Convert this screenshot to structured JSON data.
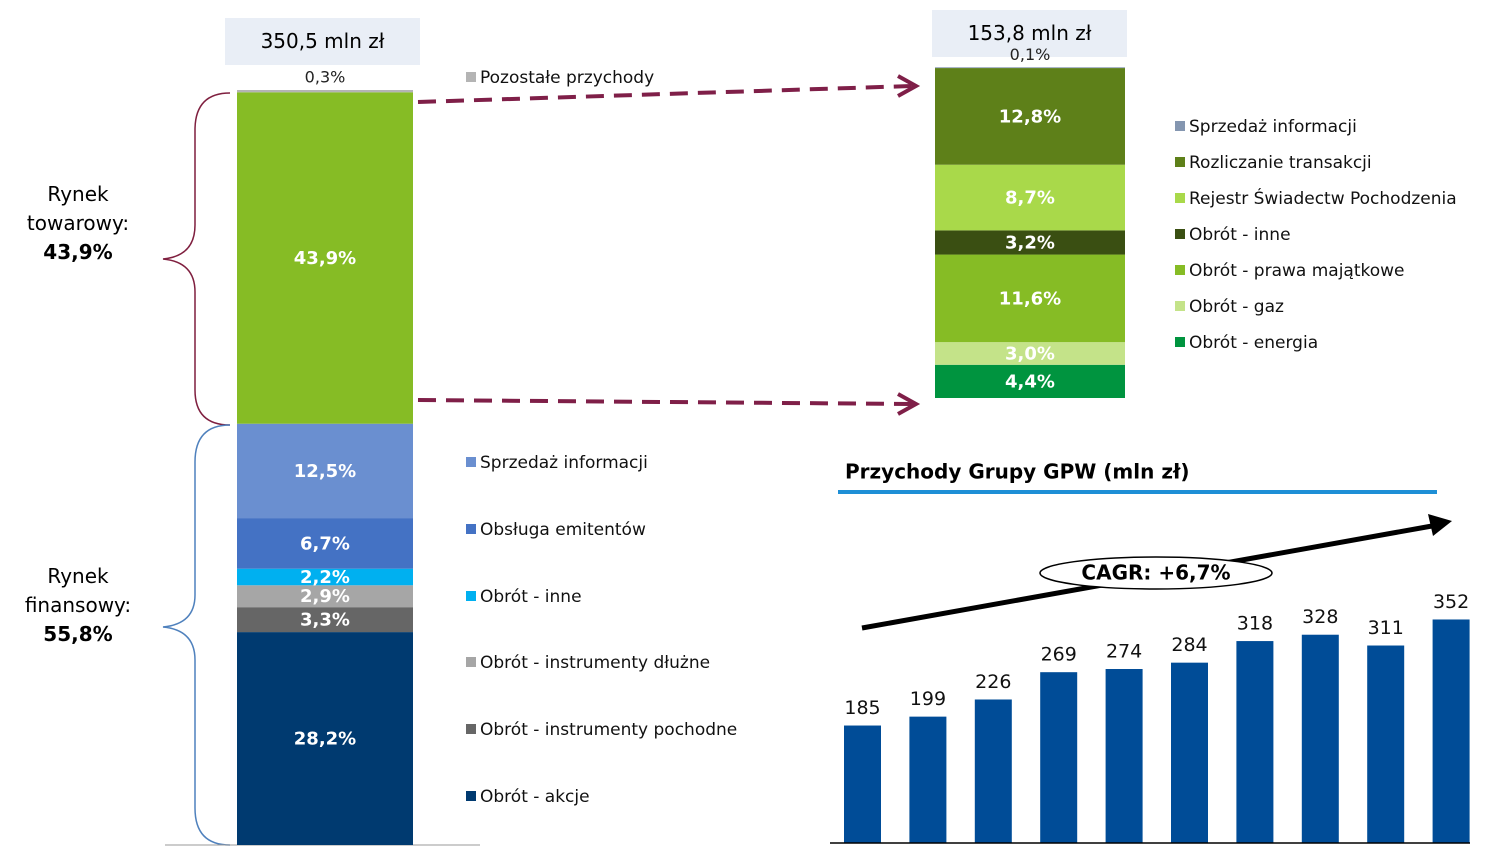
{
  "chart_data": [
    {
      "type": "stacked_bar",
      "total_label": "350,5 mln zł",
      "ylim": [
        0,
        100
      ],
      "series": [
        {
          "name": "Obrót - akcje",
          "color": "#003a70",
          "values": [
            28.2
          ],
          "value_labels": [
            "28,2%"
          ]
        },
        {
          "name": "Obrót - instrumenty pochodne",
          "color": "#666666",
          "values": [
            3.3
          ],
          "value_labels": [
            "3,3%"
          ]
        },
        {
          "name": "Obrót - instrumenty dłużne",
          "color": "#a6a6a6",
          "values": [
            2.9
          ],
          "value_labels": [
            "2,9%"
          ]
        },
        {
          "name": "Obrót - inne",
          "color": "#00b0f0",
          "values": [
            2.2
          ],
          "value_labels": [
            "2,2%"
          ]
        },
        {
          "name": "Obsługa emitentów",
          "color": "#4472c4",
          "values": [
            6.7
          ],
          "value_labels": [
            "6,7%"
          ]
        },
        {
          "name": "Sprzedaż informacji",
          "color": "#6a8fd0",
          "values": [
            12.5
          ],
          "value_labels": [
            "12,5%"
          ]
        },
        {
          "color": "#86bc25",
          "values": [
            43.9
          ],
          "value_labels": [
            "43,9%"
          ]
        },
        {
          "name": "Pozostałe przychody",
          "color": "#b4b4b4",
          "values": [
            0.3
          ],
          "value_labels": [
            "0,3%"
          ]
        }
      ],
      "annotations": [
        {
          "text": "Rynek towarowy:",
          "value_label": "43,9%"
        },
        {
          "text": "Rynek finansowy:",
          "value_label": "55,8%"
        }
      ]
    },
    {
      "type": "stacked_bar",
      "total_label": "153,8 mln zł",
      "series": [
        {
          "name": "Obrót - energia",
          "color": "#00943f",
          "values": [
            4.4
          ],
          "value_labels": [
            "4,4%"
          ]
        },
        {
          "name": "Obrót - gaz",
          "color": "#c4e389",
          "values": [
            3.0
          ],
          "value_labels": [
            "3,0%"
          ]
        },
        {
          "name": "Obrót - prawa majątkowe",
          "color": "#86bc25",
          "values": [
            11.6
          ],
          "value_labels": [
            "11,6%"
          ]
        },
        {
          "name": "Obrót - inne",
          "color": "#3a4f12",
          "values": [
            3.2
          ],
          "value_labels": [
            "3,2%"
          ]
        },
        {
          "name": "Rejestr Świadectw Pochodzenia",
          "color": "#a9d94a",
          "values": [
            8.7
          ],
          "value_labels": [
            "8,7%"
          ]
        },
        {
          "name": "Rozliczanie transakcji",
          "color": "#5e8019",
          "values": [
            12.8
          ],
          "value_labels": [
            "12,8%"
          ]
        },
        {
          "name": "Sprzedaż informacji",
          "color": "#8496b0",
          "values": [
            0.1
          ],
          "value_labels": [
            "0,1%"
          ]
        }
      ]
    },
    {
      "type": "bar",
      "title": "Przychody Grupy GPW (mln zł)",
      "categories": [
        null,
        null,
        null,
        null,
        null,
        null,
        null,
        null,
        null,
        null
      ],
      "values": [
        185,
        199,
        226,
        269,
        274,
        284,
        318,
        328,
        311,
        352
      ],
      "color": "#004c97",
      "ylim": [
        0,
        400
      ],
      "annotation": "CAGR: +6,7%"
    }
  ]
}
